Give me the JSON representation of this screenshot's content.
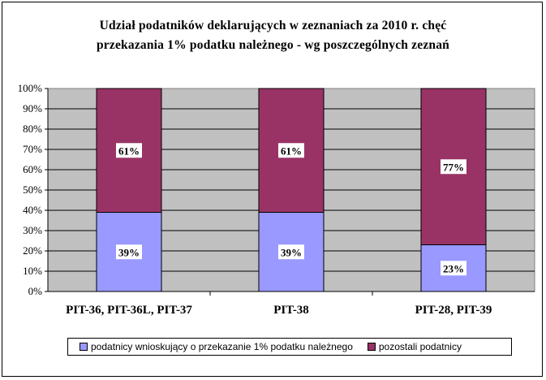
{
  "chart_data": {
    "type": "bar",
    "stacked": true,
    "percent_stacked": true,
    "title_lines": [
      "Udział podatników deklarujących w zeznaniach za 2010 r. chęć",
      "przekazania 1% podatku należnego  - wg poszczególnych zeznań"
    ],
    "categories": [
      "PIT-36, PIT-36L, PIT-37",
      "PIT-38",
      "PIT-28, PIT-39"
    ],
    "series": [
      {
        "name": "podatnicy wnioskujący o przekazanie 1% podatku należnego",
        "color": "#9999ff",
        "values": [
          39,
          39,
          23
        ],
        "labels": [
          "39%",
          "39%",
          "23%"
        ]
      },
      {
        "name": "pozostali podatnicy",
        "color": "#993366",
        "values": [
          61,
          61,
          77
        ],
        "labels": [
          "61%",
          "61%",
          "77%"
        ]
      }
    ],
    "y_ticks": [
      "0%",
      "10%",
      "20%",
      "30%",
      "40%",
      "50%",
      "60%",
      "70%",
      "80%",
      "90%",
      "100%"
    ],
    "ylim": [
      0,
      100
    ],
    "grid": true,
    "plot_background": "#c0c0c0",
    "legend_position": "bottom"
  }
}
